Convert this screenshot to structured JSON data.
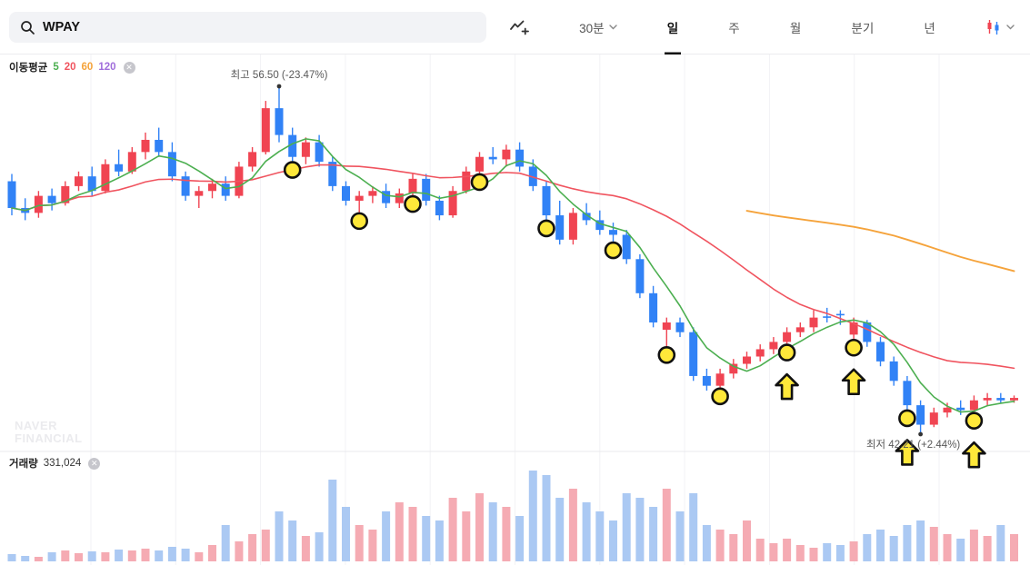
{
  "header": {
    "search": {
      "value": "WPAY"
    },
    "toolbar": {
      "interval_label": "30분",
      "tabs": [
        {
          "label": "일",
          "selected": true
        },
        {
          "label": "주",
          "selected": false
        },
        {
          "label": "월",
          "selected": false
        },
        {
          "label": "분기",
          "selected": false
        },
        {
          "label": "년",
          "selected": false
        }
      ]
    }
  },
  "chart": {
    "legend": {
      "title": "이동평균",
      "periods": [
        {
          "label": "5",
          "color": "#4caf50"
        },
        {
          "label": "20",
          "color": "#f0545f"
        },
        {
          "label": "60",
          "color": "#f5a33b"
        },
        {
          "label": "120",
          "color": "#a06ddb"
        }
      ]
    },
    "annotations": {
      "high": {
        "label": "최고 56.50 (-23.47%)",
        "price": 56.5,
        "candle_index": 20
      },
      "low": {
        "label": "최저 42.21 (+2.44%)",
        "price": 42.21,
        "candle_index": 68
      }
    },
    "watermark": {
      "line1": "NAVER",
      "line2": "FINANCIAL"
    }
  },
  "volume": {
    "label": "거래량",
    "value": "331,024"
  },
  "chart_data": {
    "type": "candlestick",
    "interval": "일",
    "price_high": 56.5,
    "price_low": 42.21,
    "up_color": "#f04452",
    "down_color": "#3182f6",
    "volume_up_color": "#f5abb3",
    "volume_down_color": "#abc9f3",
    "ma_colors": {
      "ma5": "#4caf50",
      "ma20": "#f0545f",
      "ma60": "#f5a33b"
    },
    "candles": [
      [
        52.6,
        52.9,
        51.2,
        51.5
      ],
      [
        51.5,
        51.9,
        51.0,
        51.3
      ],
      [
        51.3,
        52.2,
        51.1,
        52.0
      ],
      [
        52.0,
        52.3,
        51.4,
        51.7
      ],
      [
        51.7,
        52.6,
        51.6,
        52.4
      ],
      [
        52.4,
        53.0,
        52.2,
        52.8
      ],
      [
        52.8,
        53.2,
        52.0,
        52.2
      ],
      [
        52.2,
        53.5,
        52.1,
        53.3
      ],
      [
        53.3,
        53.9,
        52.8,
        53.0
      ],
      [
        53.0,
        54.0,
        52.9,
        53.8
      ],
      [
        53.8,
        54.6,
        53.5,
        54.3
      ],
      [
        54.3,
        54.8,
        53.6,
        53.8
      ],
      [
        53.8,
        54.2,
        52.6,
        52.8
      ],
      [
        52.8,
        53.0,
        51.8,
        52.0
      ],
      [
        52.0,
        52.4,
        51.5,
        52.2
      ],
      [
        52.2,
        52.7,
        51.9,
        52.5
      ],
      [
        52.5,
        52.8,
        51.8,
        52.0
      ],
      [
        52.0,
        53.4,
        51.9,
        53.2
      ],
      [
        53.2,
        54.0,
        53.0,
        53.8
      ],
      [
        53.8,
        55.9,
        53.7,
        55.6
      ],
      [
        55.6,
        56.5,
        54.2,
        54.5
      ],
      [
        54.5,
        54.8,
        53.4,
        53.6
      ],
      [
        53.6,
        54.4,
        53.3,
        54.2
      ],
      [
        54.2,
        54.5,
        53.2,
        53.4
      ],
      [
        53.4,
        53.6,
        52.2,
        52.4
      ],
      [
        52.4,
        52.6,
        51.6,
        51.8
      ],
      [
        51.8,
        52.2,
        51.3,
        52.0
      ],
      [
        52.0,
        52.4,
        51.7,
        52.2
      ],
      [
        52.2,
        52.5,
        51.5,
        51.7
      ],
      [
        51.7,
        52.3,
        51.5,
        52.1
      ],
      [
        52.1,
        52.9,
        52.0,
        52.7
      ],
      [
        52.7,
        52.9,
        51.6,
        51.8
      ],
      [
        51.8,
        52.0,
        51.0,
        51.2
      ],
      [
        51.2,
        52.4,
        51.1,
        52.2
      ],
      [
        52.2,
        53.2,
        52.1,
        53.0
      ],
      [
        53.0,
        53.8,
        52.9,
        53.6
      ],
      [
        53.6,
        54.0,
        53.3,
        53.5
      ],
      [
        53.5,
        54.1,
        53.2,
        53.9
      ],
      [
        53.9,
        54.2,
        53.0,
        53.2
      ],
      [
        53.2,
        53.5,
        52.2,
        52.4
      ],
      [
        52.4,
        52.6,
        51.0,
        51.2
      ],
      [
        51.2,
        51.8,
        50.0,
        50.2
      ],
      [
        50.2,
        51.5,
        50.0,
        51.3
      ],
      [
        51.3,
        51.7,
        50.8,
        51.0
      ],
      [
        51.0,
        51.4,
        50.4,
        50.6
      ],
      [
        50.6,
        50.9,
        50.1,
        50.4
      ],
      [
        50.4,
        50.6,
        49.2,
        49.4
      ],
      [
        49.4,
        49.6,
        47.8,
        48.0
      ],
      [
        48.0,
        48.3,
        46.6,
        46.8
      ],
      [
        46.5,
        47.0,
        45.8,
        46.8
      ],
      [
        46.8,
        47.0,
        46.2,
        46.4
      ],
      [
        46.4,
        46.6,
        44.4,
        44.6
      ],
      [
        44.6,
        44.9,
        44.0,
        44.2
      ],
      [
        44.2,
        44.9,
        44.1,
        44.7
      ],
      [
        44.7,
        45.3,
        44.5,
        45.1
      ],
      [
        45.1,
        45.6,
        44.9,
        45.4
      ],
      [
        45.4,
        45.9,
        45.2,
        45.7
      ],
      [
        45.7,
        46.2,
        45.5,
        46.0
      ],
      [
        46.0,
        46.6,
        45.9,
        46.4
      ],
      [
        46.4,
        46.8,
        46.2,
        46.6
      ],
      [
        46.6,
        47.3,
        46.4,
        47.0
      ],
      [
        47.05,
        47.4,
        46.8,
        47.0
      ],
      [
        47.15,
        47.3,
        46.7,
        47.1
      ],
      [
        46.3,
        47.0,
        46.1,
        46.8
      ],
      [
        46.8,
        46.9,
        45.8,
        46.0
      ],
      [
        46.0,
        46.2,
        45.0,
        45.2
      ],
      [
        45.2,
        45.4,
        44.2,
        44.4
      ],
      [
        44.4,
        44.6,
        43.2,
        43.4
      ],
      [
        43.4,
        43.6,
        42.21,
        42.6
      ],
      [
        42.6,
        43.3,
        42.5,
        43.1
      ],
      [
        43.1,
        43.5,
        42.9,
        43.3
      ],
      [
        43.3,
        43.6,
        43.0,
        43.2
      ],
      [
        43.2,
        43.8,
        43.1,
        43.6
      ],
      [
        43.6,
        43.9,
        43.4,
        43.7
      ],
      [
        43.7,
        43.9,
        43.5,
        43.6
      ],
      [
        43.6,
        43.8,
        43.5,
        43.7
      ]
    ],
    "volumes": [
      8,
      6,
      5,
      10,
      12,
      9,
      11,
      10,
      13,
      12,
      14,
      12,
      16,
      14,
      10,
      18,
      40,
      22,
      30,
      35,
      55,
      45,
      28,
      32,
      90,
      60,
      40,
      35,
      55,
      65,
      60,
      50,
      45,
      70,
      55,
      75,
      65,
      60,
      50,
      100,
      95,
      70,
      80,
      65,
      55,
      45,
      75,
      70,
      60,
      80,
      55,
      75,
      40,
      35,
      30,
      45,
      25,
      20,
      25,
      18,
      15,
      20,
      18,
      22,
      30,
      35,
      28,
      40,
      45,
      38,
      30,
      25,
      35,
      28,
      40,
      30
    ],
    "markers": {
      "style": {
        "fill": "#ffe83a",
        "stroke": "#111111"
      },
      "circle_indexes": [
        21,
        26,
        30,
        35,
        40,
        45,
        49,
        53,
        58,
        63,
        67,
        72
      ],
      "arrow_indexes": [
        58,
        63,
        67,
        72
      ]
    }
  }
}
